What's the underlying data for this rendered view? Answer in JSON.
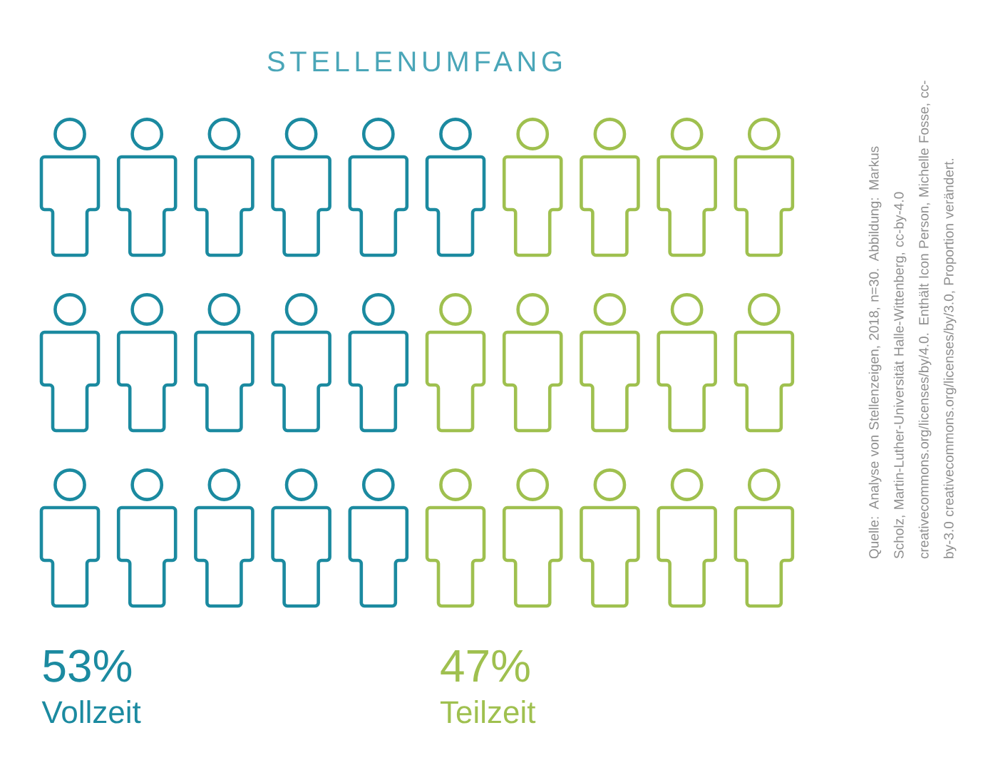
{
  "chart_data": {
    "type": "other",
    "title": "STELLENUMFANG",
    "categories": [
      "Vollzeit",
      "Teilzeit"
    ],
    "values": [
      53,
      47
    ],
    "value_labels": [
      "53%",
      "47%"
    ],
    "colors": [
      "#1b8aa0",
      "#9fc04f"
    ],
    "annotations": [
      "Quelle: Analyse von Stellenzeigen, 2018, n=30. Abbildung: Markus Scholz, Martin-Luther-Universität Halle-Wittenberg, cc-by-4.0 creativecommons.org/licenses/by/4.0. Enthält Icon Person, Michelle Fosse, cc-by-3.0 creativecommons.org/licenses/by/3.0, Proportion verändert."
    ]
  }
}
